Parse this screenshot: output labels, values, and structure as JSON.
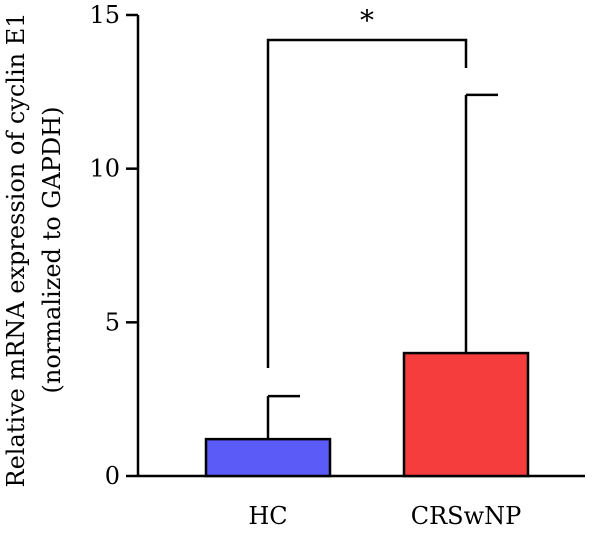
{
  "chart_data": {
    "type": "bar",
    "categories": [
      "HC",
      "CRSwNP"
    ],
    "values": [
      1.2,
      4.0
    ],
    "error_upper": [
      2.6,
      12.4
    ],
    "colors": [
      "#5b5bf7",
      "#f53d3d"
    ],
    "ylabel_lines": [
      "Relative mRNA expression of cyclin E1",
      "(normalized to GAPDH)"
    ],
    "yticks": [
      "0",
      "5",
      "10",
      "15"
    ],
    "ylim": [
      0,
      15
    ],
    "significance": {
      "text": "*",
      "between": [
        0,
        1
      ]
    },
    "grid": false,
    "legend": "none"
  }
}
